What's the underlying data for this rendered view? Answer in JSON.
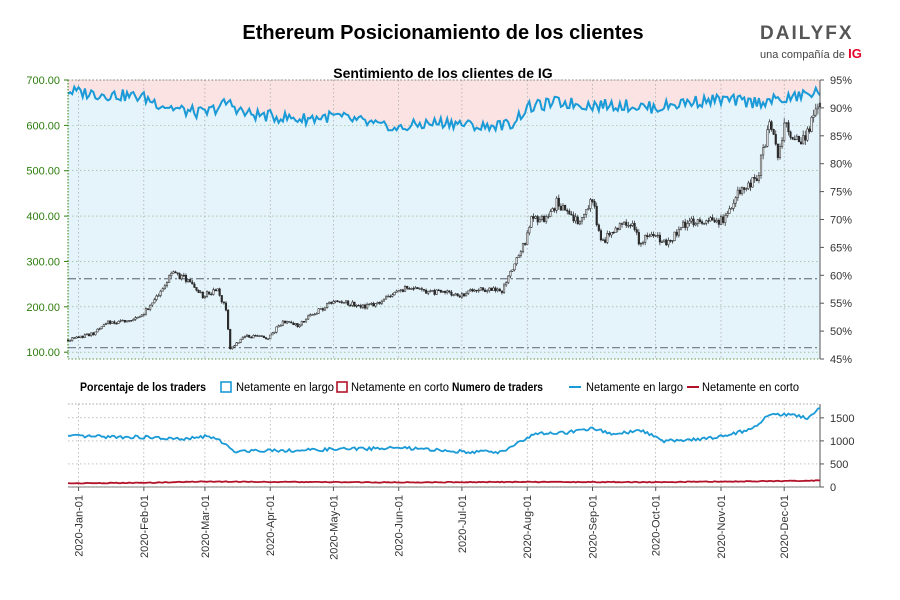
{
  "header": {
    "title": "Ethereum Posicionamiento de los clientes",
    "subtitle": "Sentimiento de los clientes de IG"
  },
  "logo": {
    "brand": "DAILYFX",
    "tagline": "una compañía de",
    "ig": "IG"
  },
  "legend": {
    "pct_title": "Porcentaje de los traders",
    "pct_long": "Netamente en largo",
    "pct_short": "Netamente en corto",
    "num_title": "Numero de traders",
    "num_long": "Netamente en largo",
    "num_short": "Netamente en corto"
  },
  "colors": {
    "long": "#1a9ad6",
    "short": "#b3132a",
    "long_fill": "#e5f3fb",
    "short_fill": "#fbe3e3",
    "price_axis": "#2e7d0e",
    "reference_line": "#7a8490",
    "candle_up": "#efefef",
    "candle_down": "#2b2b2b",
    "grid": "#9a9a9a"
  },
  "chart_data": [
    {
      "type": "candlestick",
      "name": "price",
      "ylim": [
        85,
        700
      ],
      "yticks": [
        "100.00",
        "200.00",
        "300.00",
        "400.00",
        "500.00",
        "600.00",
        "700.00"
      ],
      "reference_lines": [
        110,
        262
      ],
      "x_start": "2019-12-27",
      "x_end": "2020-12-18",
      "close_anchors": [
        [
          "2019-12-27",
          127
        ],
        [
          "2020-01-08",
          141
        ],
        [
          "2020-01-15",
          165
        ],
        [
          "2020-01-22",
          168
        ],
        [
          "2020-01-31",
          180
        ],
        [
          "2020-02-07",
          222
        ],
        [
          "2020-02-14",
          275
        ],
        [
          "2020-02-21",
          262
        ],
        [
          "2020-02-29",
          225
        ],
        [
          "2020-03-07",
          235
        ],
        [
          "2020-03-11",
          195
        ],
        [
          "2020-03-13",
          110
        ],
        [
          "2020-03-20",
          135
        ],
        [
          "2020-03-31",
          132
        ],
        [
          "2020-04-07",
          168
        ],
        [
          "2020-04-14",
          160
        ],
        [
          "2020-04-22",
          185
        ],
        [
          "2020-04-30",
          210
        ],
        [
          "2020-05-07",
          210
        ],
        [
          "2020-05-14",
          200
        ],
        [
          "2020-05-21",
          205
        ],
        [
          "2020-05-31",
          232
        ],
        [
          "2020-06-07",
          245
        ],
        [
          "2020-06-14",
          232
        ],
        [
          "2020-06-21",
          233
        ],
        [
          "2020-06-30",
          226
        ],
        [
          "2020-07-10",
          240
        ],
        [
          "2020-07-20",
          236
        ],
        [
          "2020-07-24",
          275
        ],
        [
          "2020-07-31",
          345
        ],
        [
          "2020-08-03",
          390
        ],
        [
          "2020-08-10",
          395
        ],
        [
          "2020-08-15",
          430
        ],
        [
          "2020-08-20",
          410
        ],
        [
          "2020-08-26",
          385
        ],
        [
          "2020-09-01",
          440
        ],
        [
          "2020-09-03",
          385
        ],
        [
          "2020-09-05",
          340
        ],
        [
          "2020-09-12",
          375
        ],
        [
          "2020-09-20",
          380
        ],
        [
          "2020-09-23",
          345
        ],
        [
          "2020-09-30",
          358
        ],
        [
          "2020-10-07",
          342
        ],
        [
          "2020-10-14",
          380
        ],
        [
          "2020-10-21",
          390
        ],
        [
          "2020-10-31",
          385
        ],
        [
          "2020-11-05",
          410
        ],
        [
          "2020-11-10",
          460
        ],
        [
          "2020-11-18",
          480
        ],
        [
          "2020-11-24",
          605
        ],
        [
          "2020-11-28",
          530
        ],
        [
          "2020-12-01",
          600
        ],
        [
          "2020-12-05",
          570
        ],
        [
          "2020-12-09",
          560
        ],
        [
          "2020-12-13",
          595
        ],
        [
          "2020-12-16",
          640
        ],
        [
          "2020-12-18",
          645
        ]
      ]
    },
    {
      "type": "line",
      "name": "Netamente en largo (%)",
      "ylim": [
        45,
        95
      ],
      "yticks": [
        "45%",
        "50%",
        "55%",
        "60%",
        "65%",
        "70%",
        "75%",
        "80%",
        "85%",
        "90%",
        "95%"
      ],
      "anchors": [
        [
          "2019-12-27",
          93.0
        ],
        [
          "2020-01-10",
          92.5
        ],
        [
          "2020-01-31",
          92.0
        ],
        [
          "2020-02-10",
          90.5
        ],
        [
          "2020-02-20",
          89.5
        ],
        [
          "2020-03-01",
          89.0
        ],
        [
          "2020-03-12",
          91.0
        ],
        [
          "2020-03-20",
          89.0
        ],
        [
          "2020-04-01",
          88.5
        ],
        [
          "2020-04-15",
          88.0
        ],
        [
          "2020-05-01",
          88.5
        ],
        [
          "2020-05-15",
          87.5
        ],
        [
          "2020-05-30",
          86.0
        ],
        [
          "2020-06-10",
          87.0
        ],
        [
          "2020-06-25",
          87.5
        ],
        [
          "2020-07-10",
          86.5
        ],
        [
          "2020-07-24",
          87.0
        ],
        [
          "2020-08-01",
          90.0
        ],
        [
          "2020-08-15",
          91.0
        ],
        [
          "2020-09-01",
          90.5
        ],
        [
          "2020-09-15",
          90.5
        ],
        [
          "2020-10-01",
          90.0
        ],
        [
          "2020-10-15",
          91.0
        ],
        [
          "2020-11-01",
          91.5
        ],
        [
          "2020-11-15",
          91.0
        ],
        [
          "2020-12-01",
          91.5
        ],
        [
          "2020-12-18",
          93.0
        ]
      ]
    },
    {
      "type": "line",
      "name": "Numero de traders",
      "ylim": [
        0,
        1800
      ],
      "yticks": [
        "0",
        "500",
        "1000",
        "1500"
      ],
      "series": [
        {
          "name": "Netamente en largo",
          "anchors": [
            [
              "2019-12-27",
              1100
            ],
            [
              "2020-01-15",
              1090
            ],
            [
              "2020-02-01",
              1080
            ],
            [
              "2020-02-20",
              1030
            ],
            [
              "2020-03-01",
              1100
            ],
            [
              "2020-03-08",
              1020
            ],
            [
              "2020-03-14",
              780
            ],
            [
              "2020-04-01",
              800
            ],
            [
              "2020-04-15",
              790
            ],
            [
              "2020-05-01",
              820
            ],
            [
              "2020-05-15",
              830
            ],
            [
              "2020-06-01",
              850
            ],
            [
              "2020-06-15",
              810
            ],
            [
              "2020-07-01",
              770
            ],
            [
              "2020-07-20",
              760
            ],
            [
              "2020-07-27",
              950
            ],
            [
              "2020-08-05",
              1150
            ],
            [
              "2020-08-20",
              1180
            ],
            [
              "2020-09-01",
              1270
            ],
            [
              "2020-09-10",
              1150
            ],
            [
              "2020-09-25",
              1220
            ],
            [
              "2020-10-05",
              1000
            ],
            [
              "2020-10-20",
              1030
            ],
            [
              "2020-11-01",
              1100
            ],
            [
              "2020-11-15",
              1250
            ],
            [
              "2020-11-25",
              1600
            ],
            [
              "2020-12-05",
              1550
            ],
            [
              "2020-12-13",
              1500
            ],
            [
              "2020-12-18",
              1720
            ]
          ]
        },
        {
          "name": "Netamente en corto",
          "anchors": [
            [
              "2019-12-27",
              80
            ],
            [
              "2020-02-01",
              90
            ],
            [
              "2020-03-01",
              120
            ],
            [
              "2020-04-01",
              110
            ],
            [
              "2020-06-01",
              100
            ],
            [
              "2020-08-01",
              110
            ],
            [
              "2020-10-01",
              105
            ],
            [
              "2020-12-01",
              130
            ],
            [
              "2020-12-18",
              140
            ]
          ]
        }
      ]
    }
  ],
  "x_ticks": [
    "2020-Jan-01",
    "2020-Feb-01",
    "2020-Mar-01",
    "2020-Apr-01",
    "2020-May-01",
    "2020-Jun-01",
    "2020-Jul-01",
    "2020-Aug-01",
    "2020-Sep-01",
    "2020-Oct-01",
    "2020-Nov-01",
    "2020-Dec-01"
  ]
}
